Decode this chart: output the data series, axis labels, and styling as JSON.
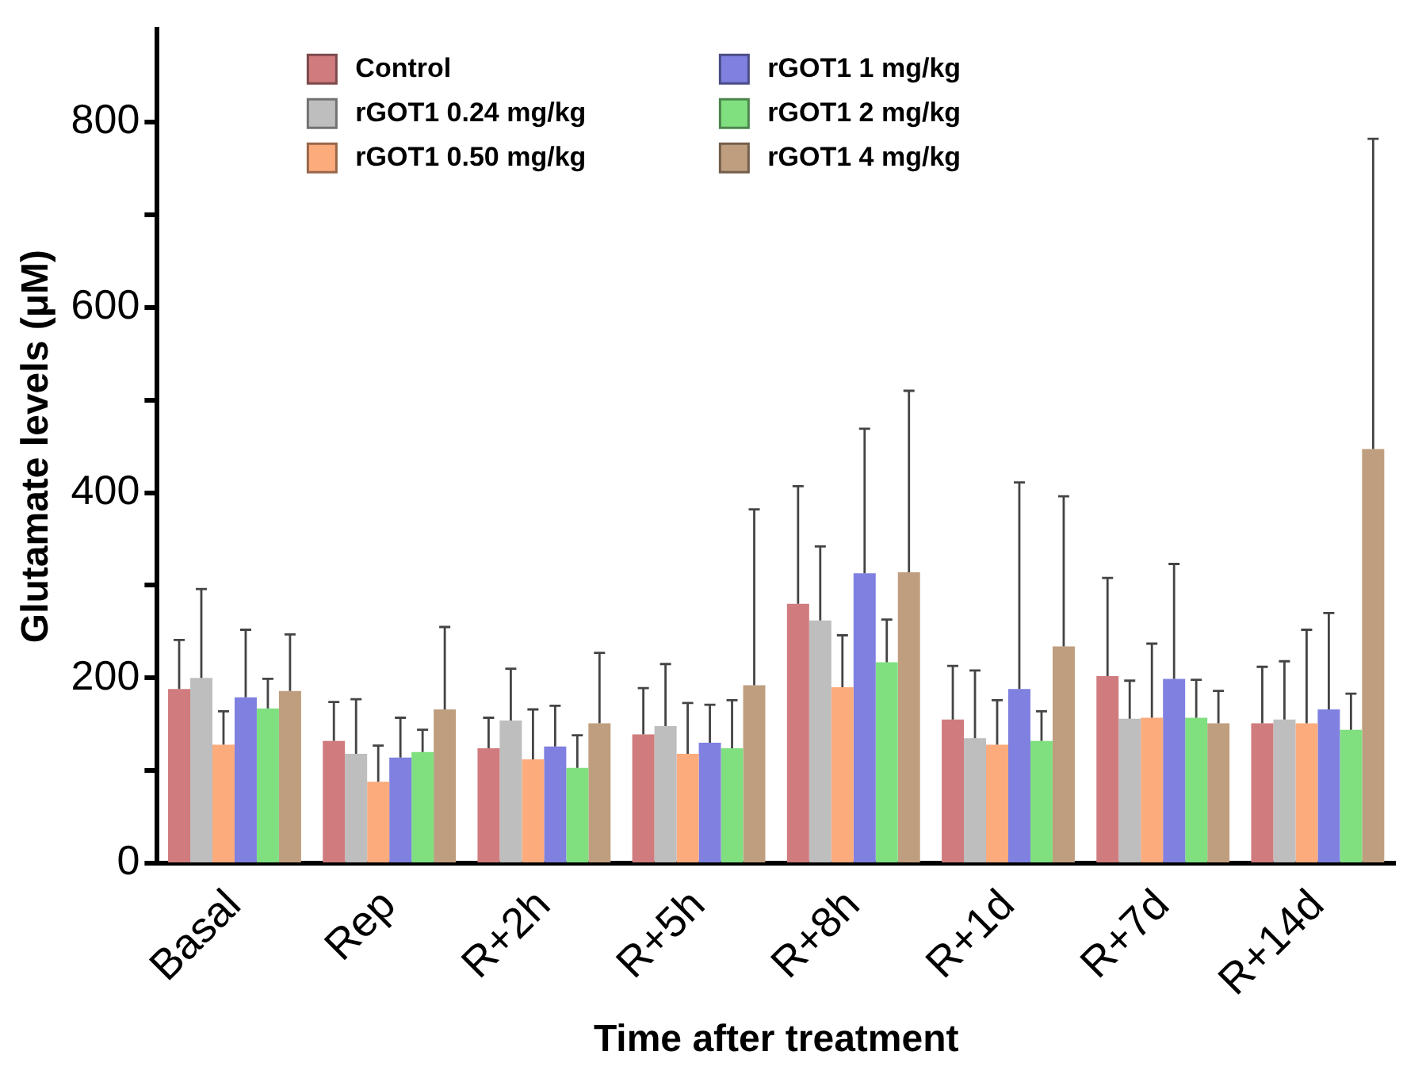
{
  "chart_data": {
    "type": "bar",
    "xlabel": "Time after treatment",
    "ylabel": "Glutamate levels (μM)",
    "categories": [
      "Basal",
      "Rep",
      "R+2h",
      "R+5h",
      "R+8h",
      "R+1d",
      "R+7d",
      "R+14d"
    ],
    "ylim": [
      0,
      900
    ],
    "yticks": [
      0,
      {
        "value": 100,
        "label": null
      },
      200,
      {
        "value": 300,
        "label": null
      },
      400,
      {
        "value": 500,
        "label": null
      },
      600,
      {
        "value": 700,
        "label": null
      },
      800
    ],
    "grid": false,
    "legend": "top left",
    "series": [
      {
        "name": "Control",
        "color": "#d07c7e",
        "values": [
          188,
          132,
          124,
          139,
          280,
          155,
          202,
          151
        ],
        "errors": [
          [
            188,
            241
          ],
          [
            132,
            174
          ],
          [
            124,
            157
          ],
          [
            139,
            189
          ],
          [
            280,
            407
          ],
          [
            155,
            213
          ],
          [
            202,
            308
          ],
          [
            151,
            212
          ]
        ]
      },
      {
        "name": "rGOT1 0.24 mg/kg",
        "color": "#bebebe",
        "values": [
          200,
          118,
          154,
          148,
          262,
          135,
          156,
          155
        ],
        "errors": [
          [
            200,
            296
          ],
          [
            118,
            177
          ],
          [
            154,
            210
          ],
          [
            148,
            215
          ],
          [
            262,
            342
          ],
          [
            135,
            208
          ],
          [
            156,
            197
          ],
          [
            155,
            218
          ]
        ]
      },
      {
        "name": "rGOT1 0.50 mg/kg",
        "color": "#fcab7c",
        "values": [
          128,
          88,
          112,
          118,
          190,
          128,
          157,
          151
        ],
        "errors": [
          [
            128,
            164
          ],
          [
            88,
            127
          ],
          [
            112,
            166
          ],
          [
            118,
            173
          ],
          [
            190,
            246
          ],
          [
            128,
            176
          ],
          [
            157,
            237
          ],
          [
            151,
            252
          ]
        ]
      },
      {
        "name": "rGOT1 1 mg/kg",
        "color": "#7f80e0",
        "values": [
          179,
          114,
          126,
          130,
          313,
          188,
          199,
          166
        ],
        "errors": [
          [
            179,
            252
          ],
          [
            114,
            157
          ],
          [
            126,
            170
          ],
          [
            130,
            171
          ],
          [
            313,
            469
          ],
          [
            188,
            411
          ],
          [
            199,
            323
          ],
          [
            166,
            270
          ]
        ]
      },
      {
        "name": "rGOT1 2 mg/kg",
        "color": "#80e080",
        "values": [
          167,
          120,
          103,
          124,
          217,
          132,
          157,
          144
        ],
        "errors": [
          [
            167,
            199
          ],
          [
            120,
            144
          ],
          [
            103,
            138
          ],
          [
            124,
            176
          ],
          [
            217,
            263
          ],
          [
            132,
            164
          ],
          [
            157,
            198
          ],
          [
            144,
            183
          ]
        ]
      },
      {
        "name": "rGOT1 4 mg/kg",
        "color": "#bf9e7f",
        "values": [
          186,
          166,
          151,
          192,
          314,
          234,
          151,
          447
        ],
        "errors": [
          [
            186,
            247
          ],
          [
            166,
            255
          ],
          [
            151,
            227
          ],
          [
            192,
            382
          ],
          [
            314,
            510
          ],
          [
            234,
            396
          ],
          [
            151,
            186
          ],
          [
            447,
            782
          ]
        ]
      }
    ]
  }
}
